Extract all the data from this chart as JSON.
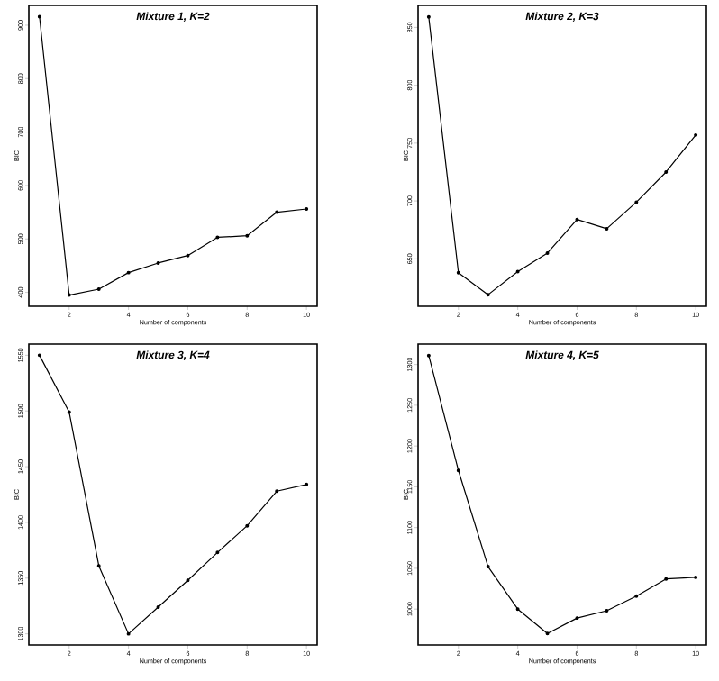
{
  "chart_data": [
    {
      "type": "line",
      "title": "Mixture 1, K=2",
      "xlabel": "Number of components",
      "ylabel": "BIC",
      "x": [
        1,
        2,
        3,
        4,
        5,
        6,
        7,
        8,
        9,
        10
      ],
      "values": [
        916,
        395,
        406,
        437,
        455,
        469,
        503,
        506,
        550,
        556
      ],
      "color": "#000000",
      "marker": "circle",
      "line_style": "solid",
      "xlim": [
        0.64,
        10.36
      ],
      "xticks": [
        2,
        4,
        6,
        8,
        10
      ],
      "ylim": [
        374,
        937
      ],
      "yticks": [
        400,
        500,
        600,
        700,
        800,
        900
      ]
    },
    {
      "type": "line",
      "title": "Mixture 2, K=3",
      "xlabel": "Number of components",
      "ylabel": "BIC",
      "x": [
        1,
        2,
        3,
        4,
        5,
        6,
        7,
        8,
        9,
        10
      ],
      "values": [
        859,
        638,
        619,
        639,
        655,
        684,
        676,
        699,
        725,
        757
      ],
      "color": "#000000",
      "marker": "circle",
      "line_style": "solid",
      "xlim": [
        0.64,
        10.36
      ],
      "xticks": [
        2,
        4,
        6,
        8,
        10
      ],
      "ylim": [
        609,
        869
      ],
      "yticks": [
        650,
        700,
        750,
        800,
        850
      ]
    },
    {
      "type": "line",
      "title": "Mixture 3, K=4",
      "xlabel": "Number of components",
      "ylabel": "BIC",
      "x": [
        1,
        2,
        3,
        4,
        5,
        6,
        7,
        8,
        9,
        10
      ],
      "values": [
        1550,
        1499,
        1361,
        1300,
        1324,
        1348,
        1373,
        1397,
        1428,
        1434
      ],
      "color": "#000000",
      "marker": "circle",
      "line_style": "solid",
      "xlim": [
        0.64,
        10.36
      ],
      "xticks": [
        2,
        4,
        6,
        8,
        10
      ],
      "ylim": [
        1290,
        1560
      ],
      "yticks": [
        1300,
        1350,
        1400,
        1450,
        1500,
        1550
      ]
    },
    {
      "type": "line",
      "title": "Mixture 4, K=5",
      "xlabel": "Number of components",
      "ylabel": "BIC",
      "x": [
        1,
        2,
        3,
        4,
        5,
        6,
        7,
        8,
        9,
        10
      ],
      "values": [
        1311,
        1170,
        1052,
        1000,
        970,
        989,
        998,
        1016,
        1037,
        1039
      ],
      "color": "#000000",
      "marker": "circle",
      "line_style": "solid",
      "xlim": [
        0.64,
        10.36
      ],
      "xticks": [
        2,
        4,
        6,
        8,
        10
      ],
      "ylim": [
        956,
        1325
      ],
      "yticks": [
        1000,
        1050,
        1100,
        1150,
        1200,
        1250,
        1300
      ]
    }
  ]
}
